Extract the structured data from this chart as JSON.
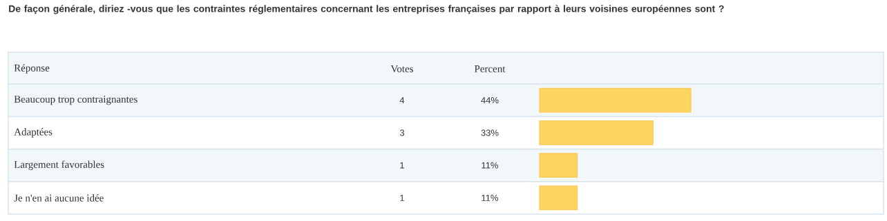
{
  "chart_data": {
    "type": "bar",
    "orientation": "horizontal",
    "title": "De façon générale, diriez -vous que les contraintes réglementaires concernant les entreprises françaises par rapport à leurs voisines européennes sont ?",
    "ylabel": "Réponse",
    "xlabel": "Percent",
    "categories": [
      "Beaucoup trop contraignantes",
      "Adaptées",
      "Largement favorables",
      "Je n'en ai aucune idée"
    ],
    "values": [
      44,
      33,
      11,
      11
    ],
    "value_labels": [
      "44%",
      "33%",
      "11%",
      "11%"
    ],
    "color": "#fcd462",
    "xlim": [
      0,
      100
    ],
    "tick_labels": "y",
    "annotations": [
      "Votes",
      "4",
      "3",
      "1",
      "1"
    ]
  }
}
